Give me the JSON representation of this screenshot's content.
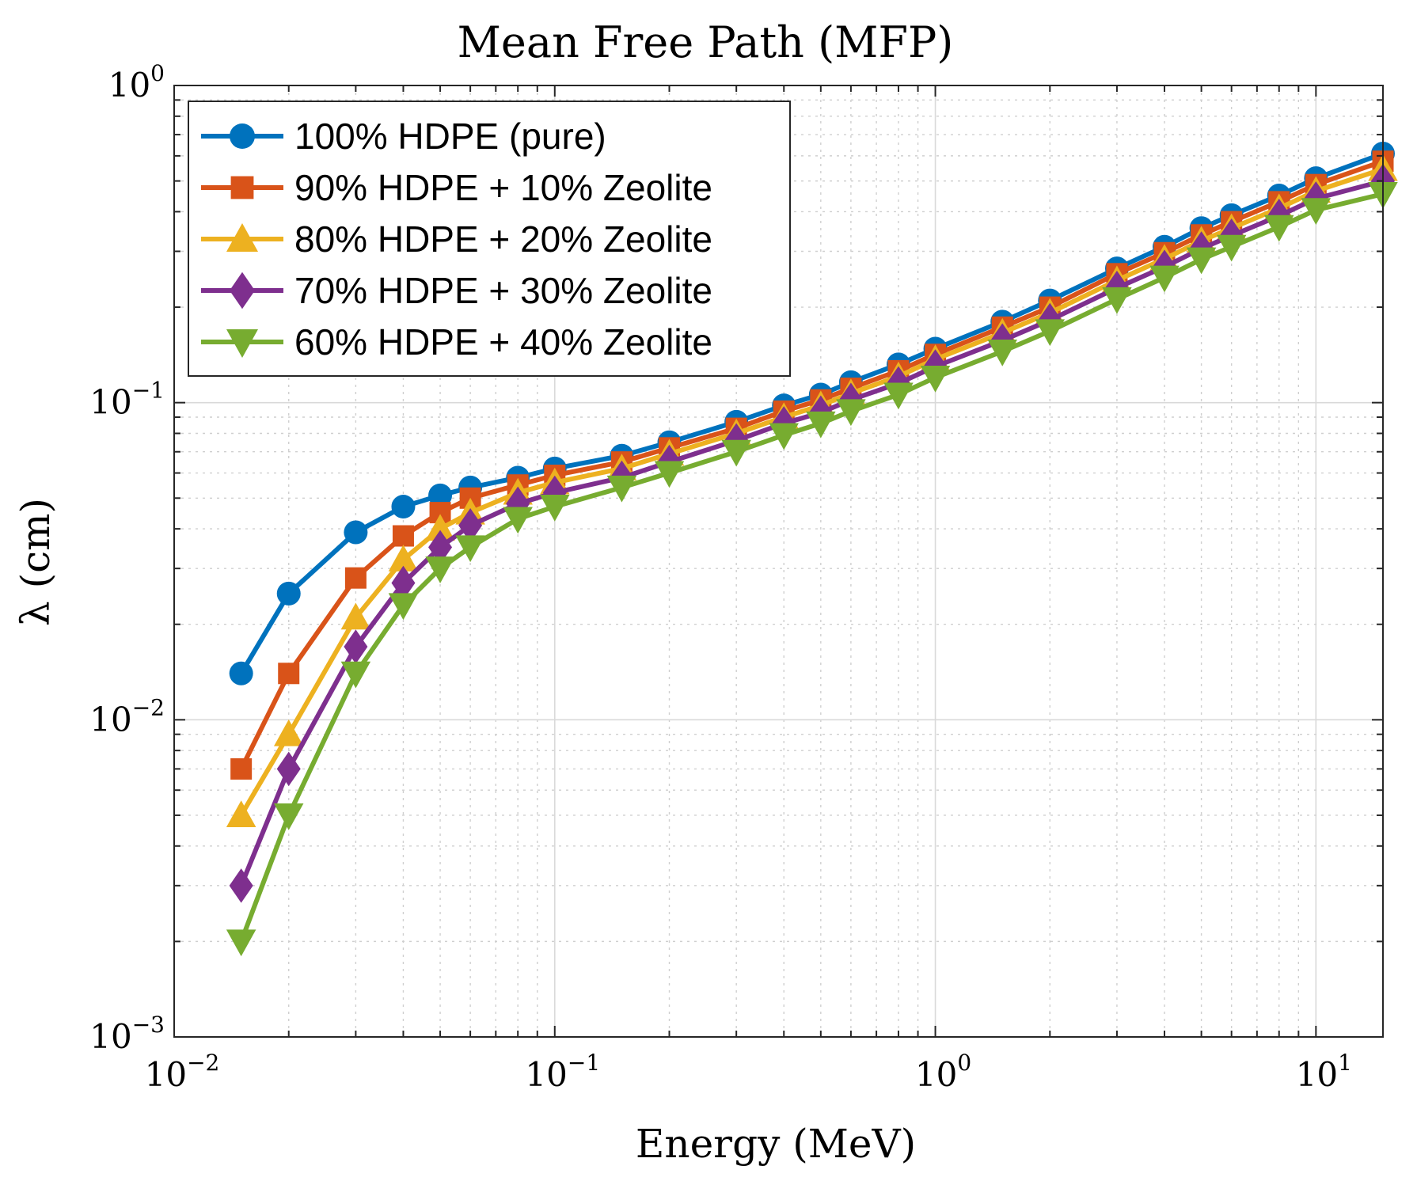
{
  "chart_data": {
    "type": "line",
    "title": "Mean Free Path (MFP)",
    "xlabel": "Energy (MeV)",
    "ylabel": "λ (cm)",
    "xscale": "log",
    "yscale": "log",
    "xlim": [
      0.01,
      15
    ],
    "ylim": [
      0.001,
      1
    ],
    "grid": true,
    "legend_position": "top-left",
    "x_tick_labels": [
      {
        "base": "10",
        "exp": "−2"
      },
      {
        "base": "10",
        "exp": "−1"
      },
      {
        "base": "10",
        "exp": "0"
      },
      {
        "base": "10",
        "exp": "1"
      }
    ],
    "y_tick_labels": [
      {
        "base": "10",
        "exp": "−3"
      },
      {
        "base": "10",
        "exp": "−2"
      },
      {
        "base": "10",
        "exp": "−1"
      },
      {
        "base": "10",
        "exp": "0"
      }
    ],
    "x": [
      0.015,
      0.02,
      0.03,
      0.04,
      0.05,
      0.06,
      0.08,
      0.1,
      0.15,
      0.2,
      0.3,
      0.4,
      0.5,
      0.6,
      0.8,
      1,
      1.5,
      2,
      3,
      4,
      5,
      6,
      8,
      10,
      15
    ],
    "series": [
      {
        "name": "100% HDPE (pure)",
        "color": "#0072BD",
        "marker": "circle",
        "values": [
          0.014,
          0.025,
          0.039,
          0.047,
          0.051,
          0.054,
          0.058,
          0.062,
          0.068,
          0.075,
          0.087,
          0.098,
          0.106,
          0.116,
          0.132,
          0.148,
          0.18,
          0.21,
          0.265,
          0.31,
          0.355,
          0.39,
          0.45,
          0.51,
          0.61
        ]
      },
      {
        "name": "90% HDPE + 10% Zeolite",
        "color": "#D95319",
        "marker": "square",
        "values": [
          0.007,
          0.014,
          0.028,
          0.038,
          0.045,
          0.05,
          0.055,
          0.059,
          0.065,
          0.072,
          0.083,
          0.094,
          0.102,
          0.111,
          0.126,
          0.142,
          0.173,
          0.2,
          0.255,
          0.297,
          0.338,
          0.372,
          0.43,
          0.487,
          0.577
        ]
      },
      {
        "name": "80% HDPE + 20% Zeolite",
        "color": "#EDB120",
        "marker": "triangle-up",
        "values": [
          0.005,
          0.009,
          0.021,
          0.032,
          0.04,
          0.045,
          0.052,
          0.056,
          0.062,
          0.069,
          0.08,
          0.09,
          0.098,
          0.107,
          0.121,
          0.137,
          0.166,
          0.192,
          0.243,
          0.284,
          0.324,
          0.355,
          0.41,
          0.465,
          0.545
        ]
      },
      {
        "name": "70% HDPE + 30% Zeolite",
        "color": "#7E2F8E",
        "marker": "diamond",
        "values": [
          0.003,
          0.007,
          0.017,
          0.027,
          0.035,
          0.041,
          0.048,
          0.052,
          0.058,
          0.065,
          0.076,
          0.086,
          0.093,
          0.102,
          0.115,
          0.13,
          0.157,
          0.182,
          0.23,
          0.268,
          0.306,
          0.336,
          0.388,
          0.44,
          0.5
        ]
      },
      {
        "name": "60% HDPE + 40% Zeolite",
        "color": "#77AC30",
        "marker": "triangle-down",
        "values": [
          0.002,
          0.005,
          0.014,
          0.023,
          0.03,
          0.035,
          0.043,
          0.047,
          0.054,
          0.06,
          0.07,
          0.079,
          0.086,
          0.094,
          0.106,
          0.12,
          0.145,
          0.168,
          0.212,
          0.248,
          0.283,
          0.31,
          0.358,
          0.405,
          0.455
        ]
      }
    ]
  }
}
